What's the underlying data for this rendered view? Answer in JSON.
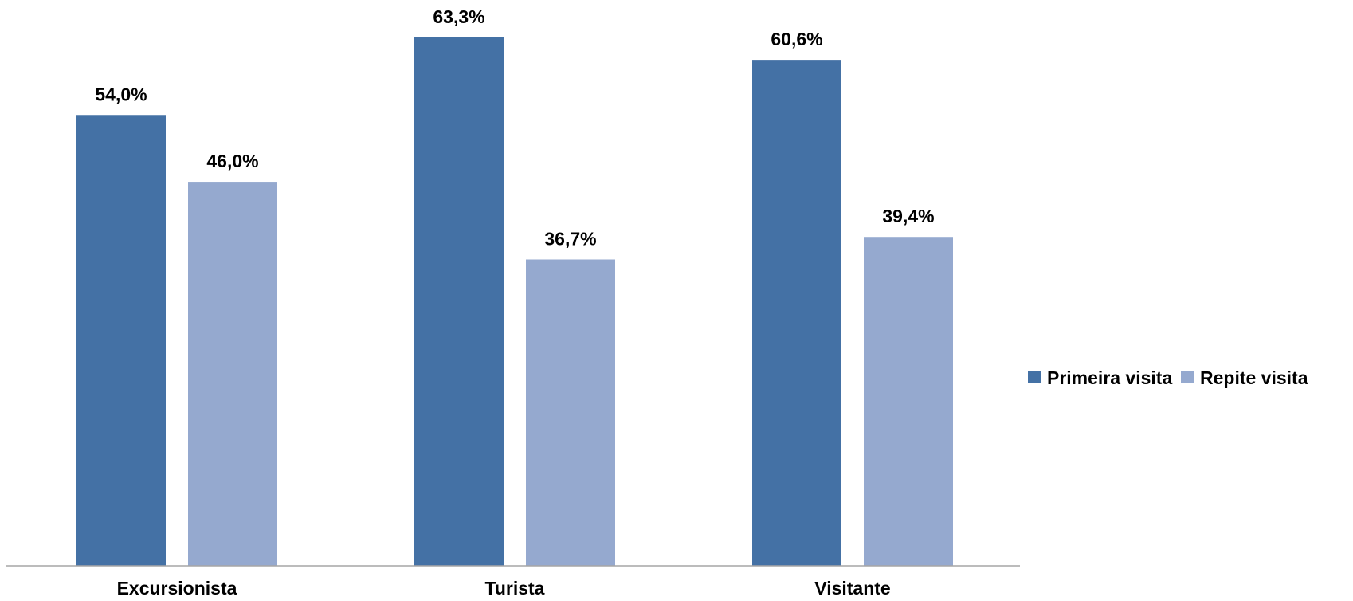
{
  "chart_data": {
    "type": "bar",
    "title": "",
    "xlabel": "",
    "ylabel": "",
    "ylim": [
      0,
      65.67
    ],
    "categories": [
      "Excursionista",
      "Turista",
      "Visitante"
    ],
    "series": [
      {
        "name": "Primeira visita",
        "values": [
          54.0,
          63.3,
          60.6
        ],
        "labels": [
          "54,0%",
          "63,3%",
          "60,6%"
        ],
        "color": "#4471a5"
      },
      {
        "name": "Repite visita",
        "values": [
          46.0,
          36.7,
          39.4
        ],
        "labels": [
          "46,0%",
          "36,7%",
          "39,4%"
        ],
        "color": "#95a9cf"
      }
    ],
    "grid": false,
    "legend": "right"
  }
}
